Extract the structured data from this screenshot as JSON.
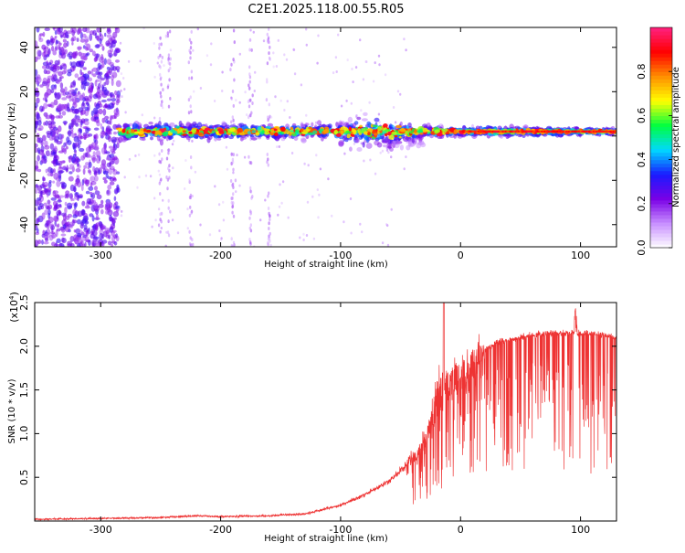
{
  "figure": {
    "title": "C2E1.2025.118.00.55.R05"
  },
  "chart_data": [
    {
      "id": "spectrogram",
      "type": "heatmap",
      "xlabel": "Height of straight line (km)",
      "ylabel": "Frequency (Hz)",
      "xlim": [
        -355,
        130
      ],
      "ylim": [
        -50,
        49
      ],
      "x_ticks": [
        -300,
        -200,
        -100,
        0,
        100
      ],
      "y_ticks": [
        -40,
        -20,
        0,
        20,
        40
      ],
      "grid": false,
      "colorbar": {
        "label": "Normalized spectral amplitude",
        "range": [
          0,
          1
        ],
        "ticks": [
          0.0,
          0.2,
          0.4,
          0.6,
          0.8
        ],
        "tick_labels": [
          "0.0",
          "0.2",
          "0.4",
          "0.6",
          "0.8"
        ],
        "colors": [
          "#ffffff",
          "#c890ff",
          "#7a00e6",
          "#1a1aff",
          "#00d8ff",
          "#00ff40",
          "#ffff00",
          "#ff9000",
          "#ff0000",
          "#ff2080"
        ]
      },
      "regions": [
        {
          "desc": "broadband noise",
          "x_range": [
            -355,
            -285
          ],
          "y_range": [
            -50,
            49
          ],
          "amplitude": [
            0.15,
            0.3
          ]
        },
        {
          "desc": "carrier band",
          "x_range": [
            -285,
            130
          ],
          "y_center": 2,
          "y_halfwidth_start": 5,
          "y_halfwidth_end": 1.5,
          "amplitude": [
            0.2,
            0.95
          ]
        }
      ]
    },
    {
      "id": "snr",
      "type": "line",
      "xlabel": "Height of straight line (km)",
      "ylabel": "SNR (10 * v/v)",
      "y_multiplier_label": "(x10",
      "y_multiplier_exp": "4",
      "xlim": [
        -355,
        130
      ],
      "ylim": [
        0,
        2.5
      ],
      "x_ticks": [
        -300,
        -200,
        -100,
        0,
        100
      ],
      "y_ticks": [
        0.5,
        1.0,
        1.5,
        2.0,
        2.5
      ],
      "y_tick_labels": [
        "0.5",
        "1.0",
        "1.5",
        "2.0",
        "2.5"
      ],
      "grid": false,
      "series": [
        {
          "color": "#ee3333",
          "x": [
            -355,
            -300,
            -250,
            -220,
            -200,
            -160,
            -130,
            -100,
            -80,
            -60,
            -40,
            -30,
            -20,
            -15,
            -10,
            0,
            10,
            20,
            30,
            50,
            70,
            90,
            110,
            130
          ],
          "y": [
            0.02,
            0.03,
            0.04,
            0.06,
            0.05,
            0.06,
            0.08,
            0.18,
            0.3,
            0.45,
            0.7,
            0.9,
            1.4,
            1.5,
            1.55,
            1.6,
            1.8,
            1.95,
            2.05,
            2.1,
            2.15,
            2.15,
            2.15,
            2.1
          ]
        }
      ]
    }
  ]
}
